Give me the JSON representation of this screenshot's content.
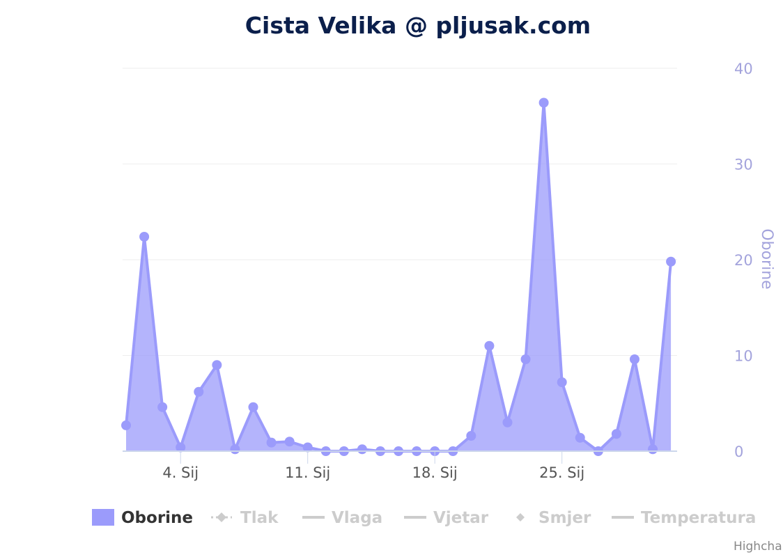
{
  "title": "Cista Velika @ pljusak.com",
  "credits": "Highchar",
  "chart_data": {
    "type": "area",
    "title": "Cista Velika @ pljusak.com",
    "ylabel": "Oborine",
    "ylim": [
      0,
      40
    ],
    "yticks": [
      "0",
      "10",
      "20",
      "30",
      "40"
    ],
    "x_start": "2022-01-01",
    "x_tick_labels": [
      {
        "date": "2022-01-04",
        "label": "4. Sij"
      },
      {
        "date": "2022-01-11",
        "label": "11. Sij"
      },
      {
        "date": "2022-01-18",
        "label": "18. Sij"
      },
      {
        "date": "2022-01-25",
        "label": "25. Sij"
      }
    ],
    "grid": true,
    "color": "#9b9bfb",
    "series": [
      {
        "name": "Oborine",
        "x": [
          "2022-01-01",
          "2022-01-02",
          "2022-01-03",
          "2022-01-04",
          "2022-01-05",
          "2022-01-06",
          "2022-01-07",
          "2022-01-08",
          "2022-01-09",
          "2022-01-10",
          "2022-01-11",
          "2022-01-12",
          "2022-01-13",
          "2022-01-14",
          "2022-01-15",
          "2022-01-16",
          "2022-01-17",
          "2022-01-18",
          "2022-01-19",
          "2022-01-20",
          "2022-01-21",
          "2022-01-22",
          "2022-01-23",
          "2022-01-24",
          "2022-01-25",
          "2022-01-26",
          "2022-01-27",
          "2022-01-28",
          "2022-01-29",
          "2022-01-30",
          "2022-01-31"
        ],
        "values": [
          2.7,
          22.4,
          4.6,
          0.4,
          6.2,
          9.0,
          0.2,
          4.6,
          0.9,
          1.0,
          0.4,
          0.0,
          0.0,
          0.2,
          0.0,
          0.0,
          0.0,
          0.0,
          0.0,
          1.6,
          11.0,
          3.0,
          9.6,
          36.4,
          7.2,
          1.4,
          0.0,
          1.8,
          9.6,
          0.2,
          19.8
        ]
      }
    ],
    "legend": [
      {
        "label": "Oborine",
        "active": true
      },
      {
        "label": "Tlak",
        "active": false
      },
      {
        "label": "Vlaga",
        "active": false
      },
      {
        "label": "Vjetar",
        "active": false
      },
      {
        "label": "Smjer",
        "active": false
      },
      {
        "label": "Temperatura",
        "active": false
      }
    ],
    "legend_placement": "bottom"
  }
}
